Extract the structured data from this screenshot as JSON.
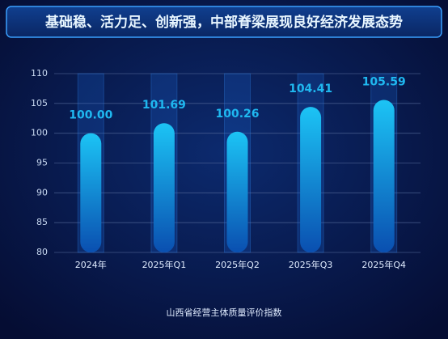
{
  "chart_data": {
    "type": "bar",
    "title": "基础稳、活力足、创新强，中部脊梁展现良好经济发展态势",
    "x_label": "山西省经营主体质量评价指数",
    "categories": [
      "2024年",
      "2025年Q1",
      "2025年Q2",
      "2025年Q3",
      "2025年Q4"
    ],
    "values": [
      100.0,
      101.69,
      100.26,
      104.41,
      105.59
    ],
    "value_labels": [
      "100.00",
      "101.69",
      "100.26",
      "104.41",
      "105.59"
    ],
    "color": "#1fb8f0",
    "ylim": [
      80,
      110
    ],
    "yticks": [
      80,
      85,
      90,
      95,
      100,
      105,
      110
    ],
    "grid": true
  }
}
